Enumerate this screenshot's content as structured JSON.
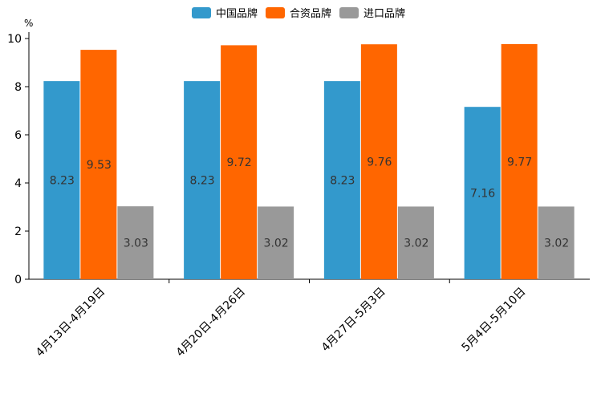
{
  "chart_data": {
    "type": "bar",
    "title": "",
    "xlabel": "",
    "ylabel": "%",
    "ylim": [
      0,
      10
    ],
    "yticks": [
      0,
      2,
      4,
      6,
      8,
      10
    ],
    "grid": false,
    "legend_position": "top-center",
    "categories": [
      "4月13日-4月19日",
      "4月20日-4月26日",
      "4月27日-5月3日",
      "5月4日-5月10日"
    ],
    "series": [
      {
        "name": "中国品牌",
        "color": "#3399cc",
        "values": [
          8.23,
          8.23,
          8.23,
          7.16
        ],
        "labels": [
          "8.23",
          "8.23",
          "8.23",
          "7.16"
        ]
      },
      {
        "name": "合资品牌",
        "color": "#ff6600",
        "values": [
          9.53,
          9.72,
          9.76,
          9.77
        ],
        "labels": [
          "9.53",
          "9.72",
          "9.76",
          "9.77"
        ]
      },
      {
        "name": "进口品牌",
        "color": "#999999",
        "values": [
          3.03,
          3.02,
          3.02,
          3.02
        ],
        "labels": [
          "3.03",
          "3.02",
          "3.02",
          "3.02"
        ]
      }
    ]
  }
}
